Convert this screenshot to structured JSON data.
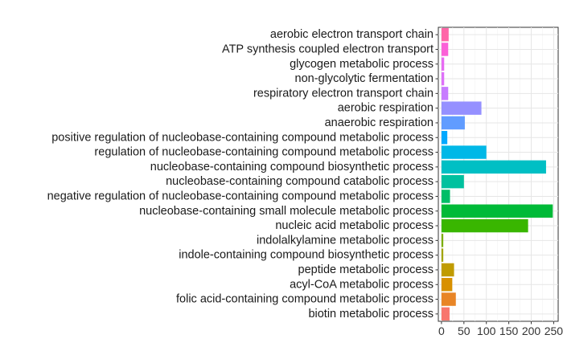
{
  "chart_data": {
    "type": "bar",
    "orientation": "horizontal",
    "categories": [
      "aerobic electron transport chain",
      "ATP synthesis coupled electron transport",
      "glycogen metabolic process",
      "non-glycolytic fermentation",
      "respiratory electron transport chain",
      "aerobic respiration",
      "anaerobic respiration",
      "positive regulation of nucleobase-containing compound metabolic process",
      "regulation of nucleobase-containing compound metabolic process",
      "nucleobase-containing compound biosynthetic process",
      "nucleobase-containing compound catabolic process",
      "negative regulation of nucleobase-containing compound metabolic process",
      "nucleobase-containing small molecule metabolic process",
      "nucleic acid metabolic process",
      "indolalkylamine metabolic process",
      "indole-containing compound biosynthetic process",
      "peptide metabolic process",
      "acyl-CoA metabolic process",
      "folic acid-containing compound metabolic process",
      "biotin metabolic process"
    ],
    "values": [
      16,
      15,
      6,
      6,
      15,
      89,
      52,
      13,
      100,
      233,
      50,
      19,
      248,
      193,
      4,
      4,
      28,
      24,
      32,
      18
    ],
    "colors": [
      "#FF66A8",
      "#FB61D7",
      "#E76BF3",
      "#DE71F9",
      "#C77CFF",
      "#9590FF",
      "#619CFF",
      "#00A9FF",
      "#00B8E7",
      "#00BFC4",
      "#00C19F",
      "#00BE67",
      "#00BA38",
      "#39B600",
      "#7CAE00",
      "#A3A500",
      "#C09B00",
      "#D89000",
      "#E88526",
      "#F8766D"
    ],
    "x_ticks": [
      "0",
      "50",
      "100",
      "150",
      "200",
      "250"
    ],
    "xlim": [
      -7,
      260
    ],
    "xlabel": "",
    "ylabel": "",
    "title": "",
    "grid": true,
    "legend": "none"
  }
}
